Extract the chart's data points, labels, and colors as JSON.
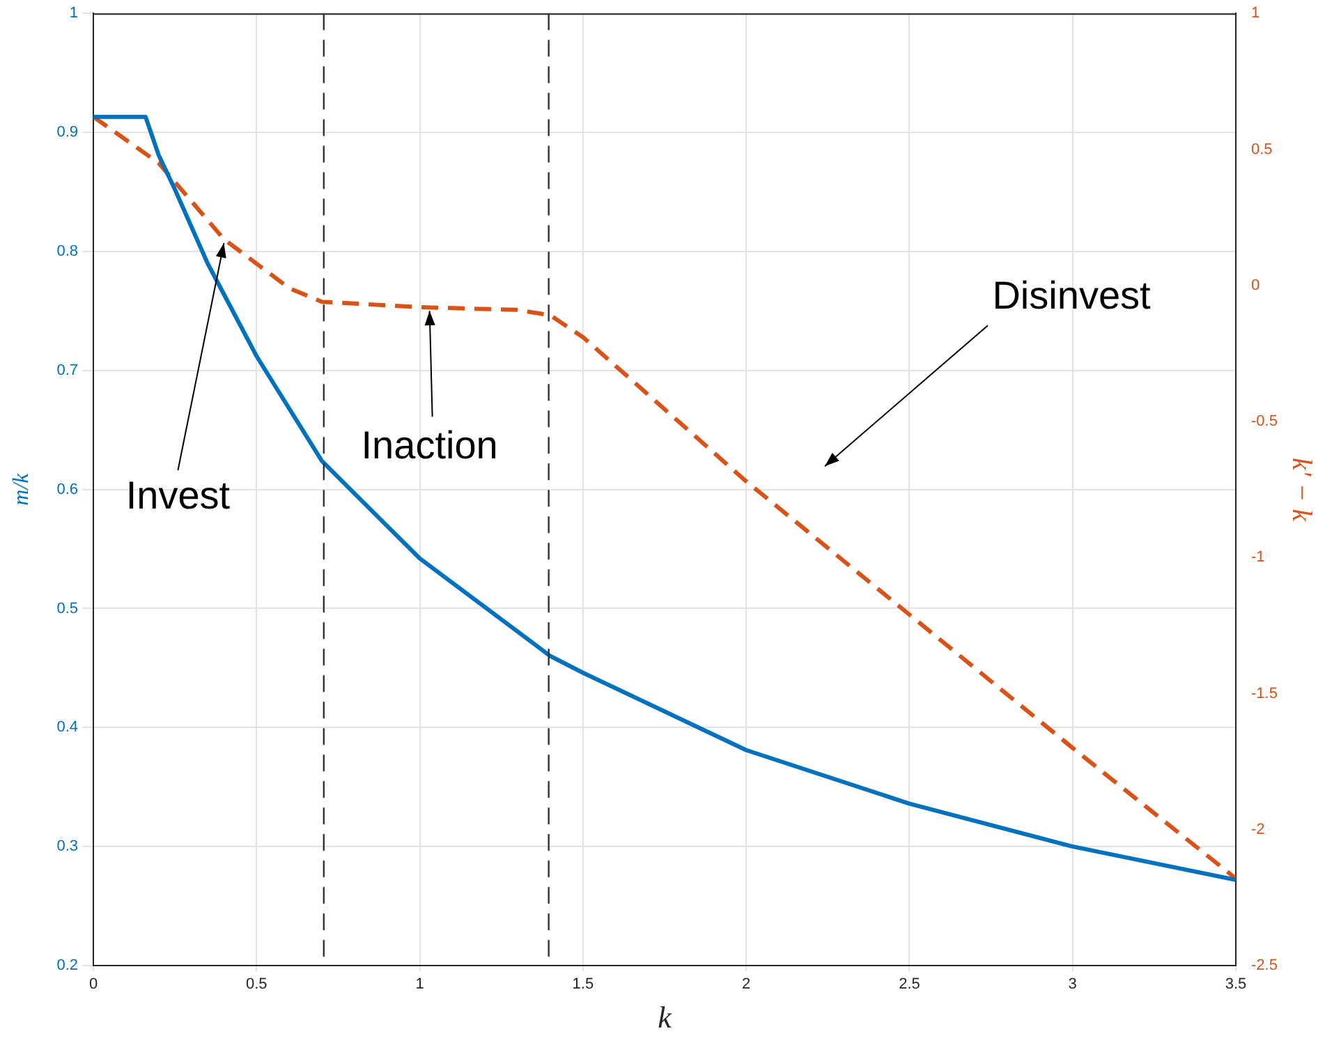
{
  "chart_data": {
    "type": "line",
    "xlabel": "k",
    "ylabel": "m/k",
    "y2label": "k′ − k",
    "series": [
      {
        "color": "#0072bd",
        "axis": "y",
        "line_style": "solid",
        "x": [
          0,
          0.16,
          0.2,
          0.25,
          0.35,
          0.5,
          0.7,
          1.0,
          1.4,
          1.5,
          2.0,
          2.5,
          3.0,
          3.5
        ],
        "values": [
          0.913,
          0.913,
          0.881,
          0.852,
          0.79,
          0.712,
          0.624,
          0.542,
          0.46,
          0.446,
          0.381,
          0.336,
          0.3,
          0.272
        ]
      },
      {
        "color": "#d95319",
        "axis": "y2",
        "line_style": "dashed",
        "x": [
          0,
          0.2,
          0.4,
          0.6,
          0.7,
          1.0,
          1.3,
          1.4,
          1.5,
          2.0,
          2.5,
          3.0,
          3.5
        ],
        "values": [
          0.62,
          0.45,
          0.17,
          -0.01,
          -0.06,
          -0.08,
          -0.09,
          -0.11,
          -0.19,
          -0.72,
          -1.21,
          -1.7,
          -2.18
        ]
      }
    ],
    "xlim": [
      0,
      3.5
    ],
    "xticks": [
      0,
      0.5,
      1,
      1.5,
      2,
      2.5,
      3,
      3.5
    ],
    "ylim": [
      0.2,
      1
    ],
    "yticks": [
      0.2,
      0.3,
      0.4,
      0.5,
      0.6,
      0.7,
      0.8,
      0.9,
      1
    ],
    "y2lim": [
      -2.5,
      1
    ],
    "y2ticks": [
      -2.5,
      -2,
      -1.5,
      -1,
      -0.5,
      0,
      0.5,
      1
    ],
    "ref_lines": [
      {
        "axis": "x",
        "value": 0.706,
        "color": "#333333",
        "line_style": "dashed"
      },
      {
        "axis": "x",
        "value": 1.395,
        "color": "#333333",
        "line_style": "dashed"
      }
    ],
    "annotations": [
      {
        "text": "Invest",
        "x": 0.4,
        "y": 0.807
      },
      {
        "text": "Inaction",
        "x": 1.03,
        "y": 0.75
      },
      "Disinvest"
    ],
    "grid": true,
    "legend": false,
    "marker": "none"
  }
}
